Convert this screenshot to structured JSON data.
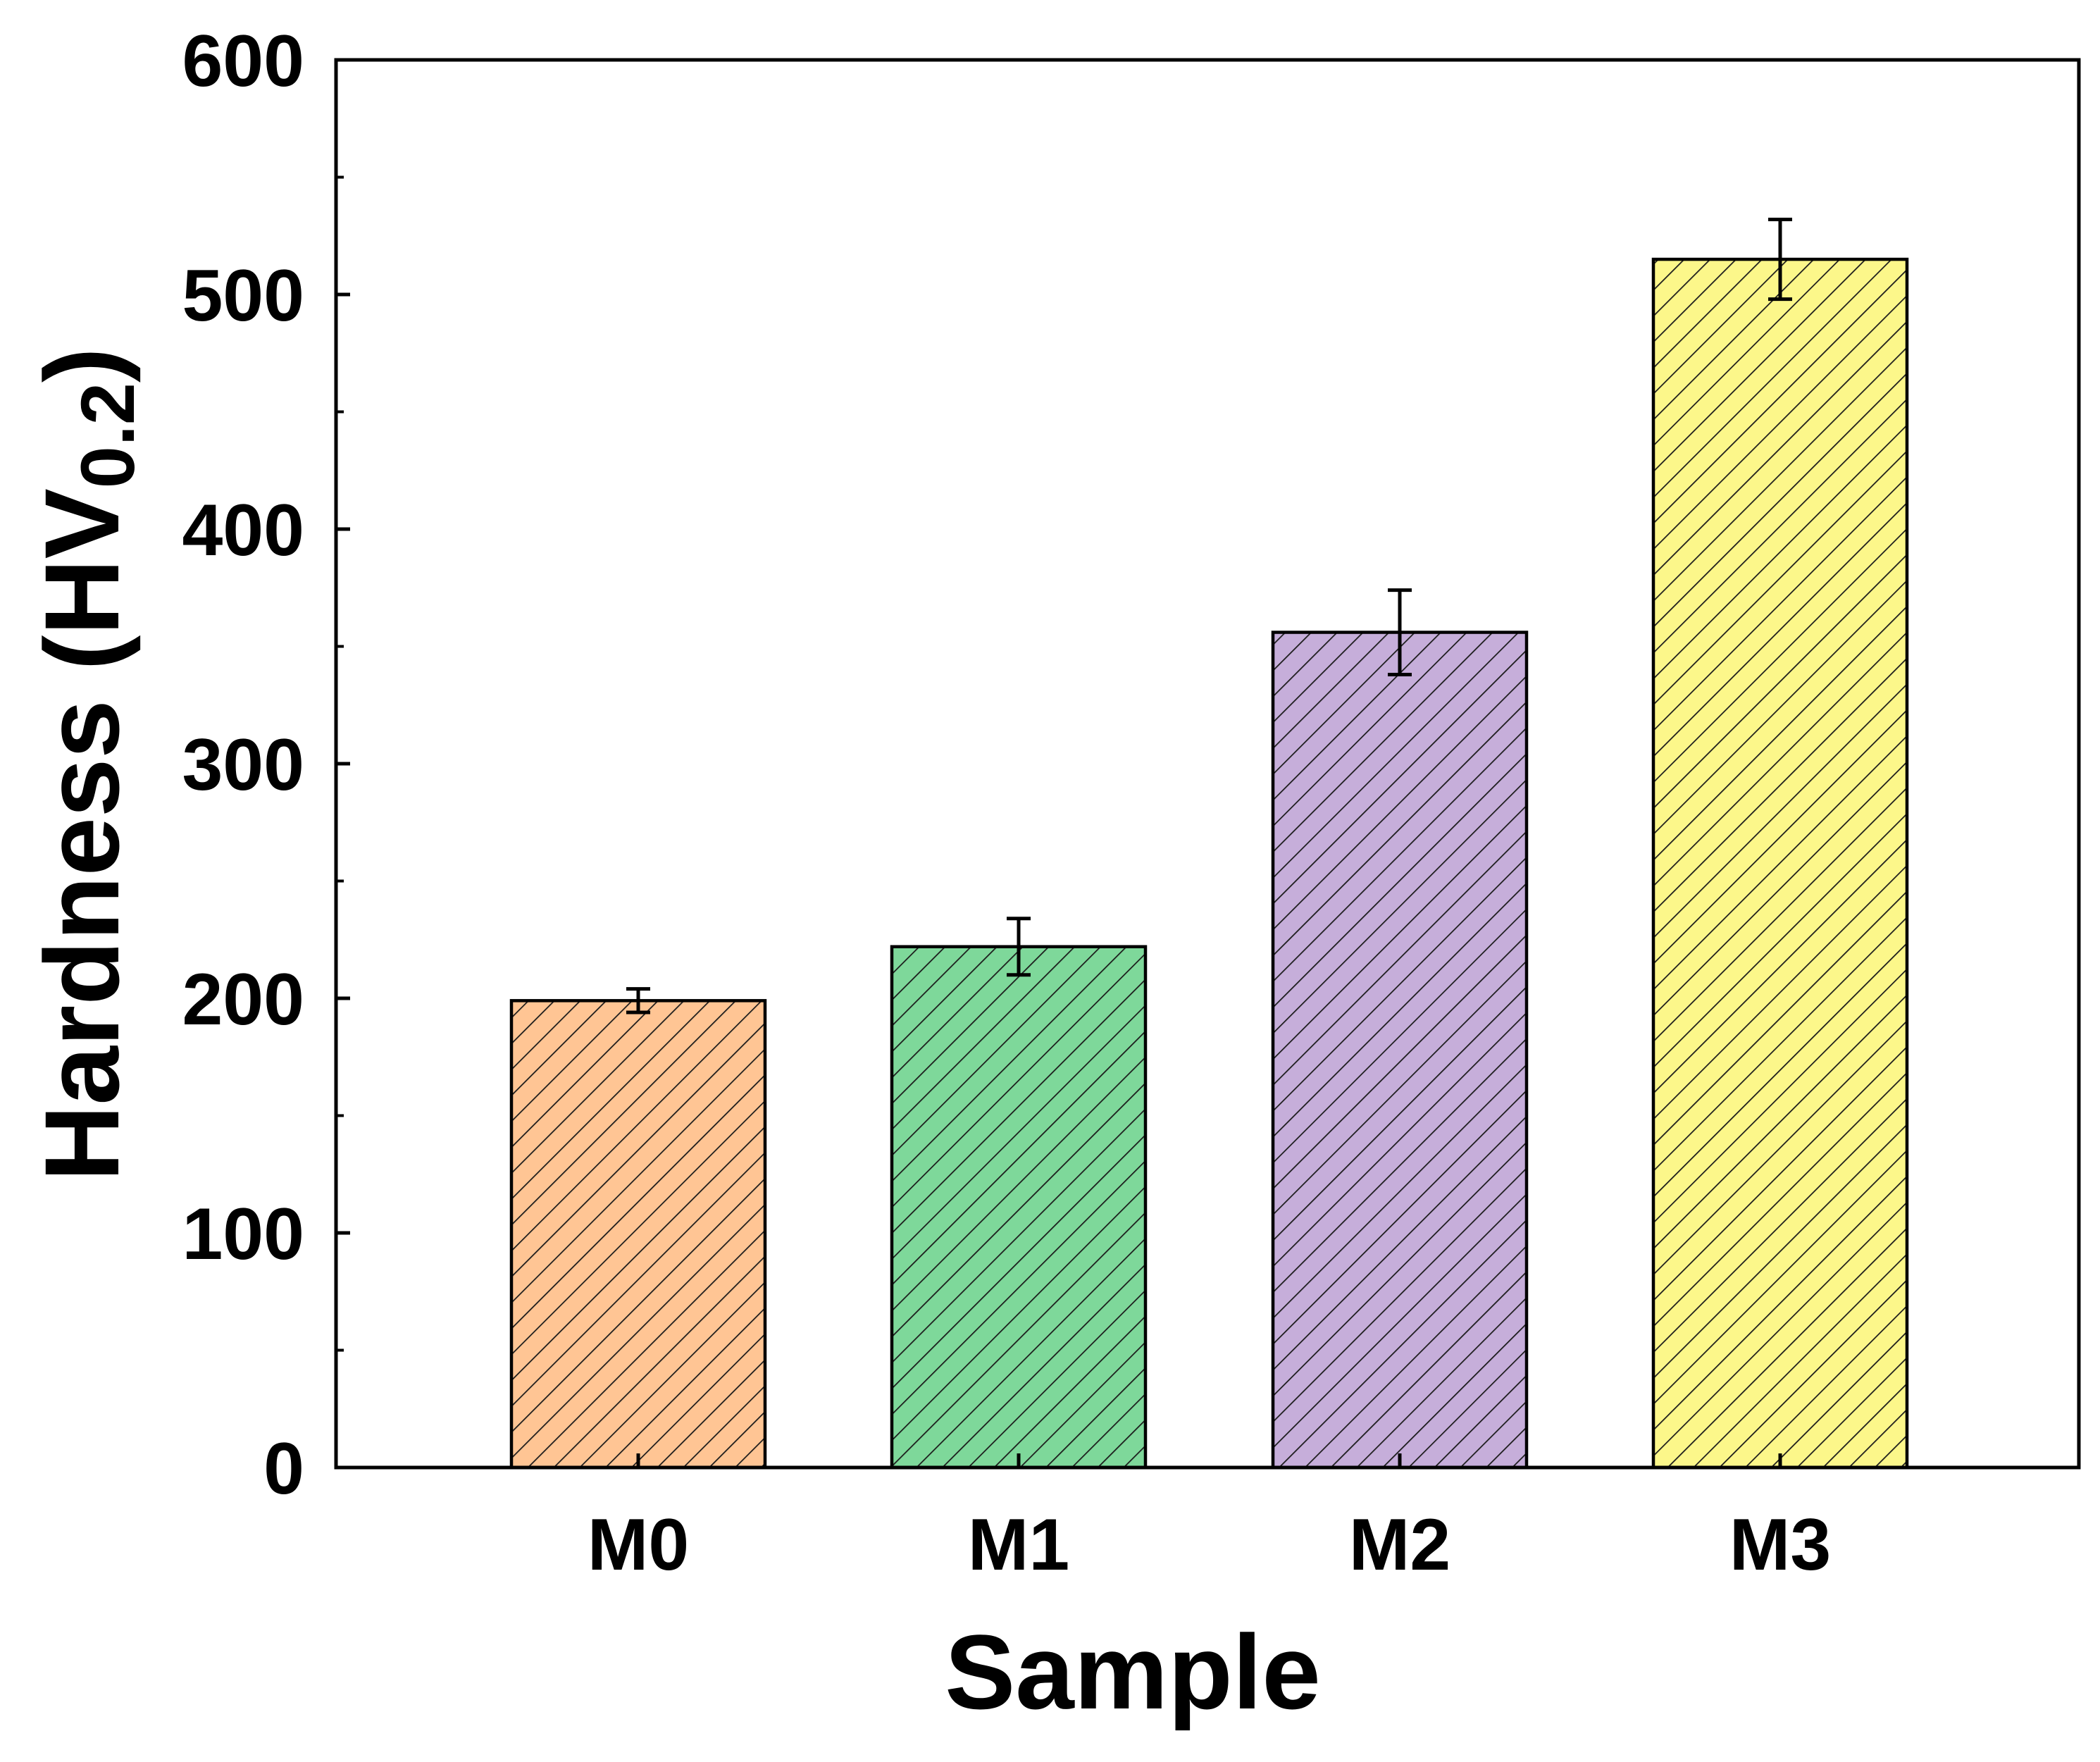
{
  "chart_data": {
    "type": "bar",
    "categories": [
      "M0",
      "M1",
      "M2",
      "M3"
    ],
    "values": [
      199,
      222,
      356,
      515
    ],
    "errors": [
      5,
      12,
      18,
      17
    ],
    "colors": [
      "#FFC594",
      "#7ED89A",
      "#C6AEDA",
      "#FCF78A"
    ],
    "pattern": "diagonal-hatch",
    "xlabel": "Sample",
    "ylabel": {
      "main": "Hardness (HV",
      "sub": "0.2",
      "close": ")"
    },
    "ylim": [
      0,
      600
    ],
    "yticks": [
      "0",
      "100",
      "200",
      "300",
      "400",
      "500",
      "600"
    ],
    "grid": false,
    "legend": "none"
  }
}
